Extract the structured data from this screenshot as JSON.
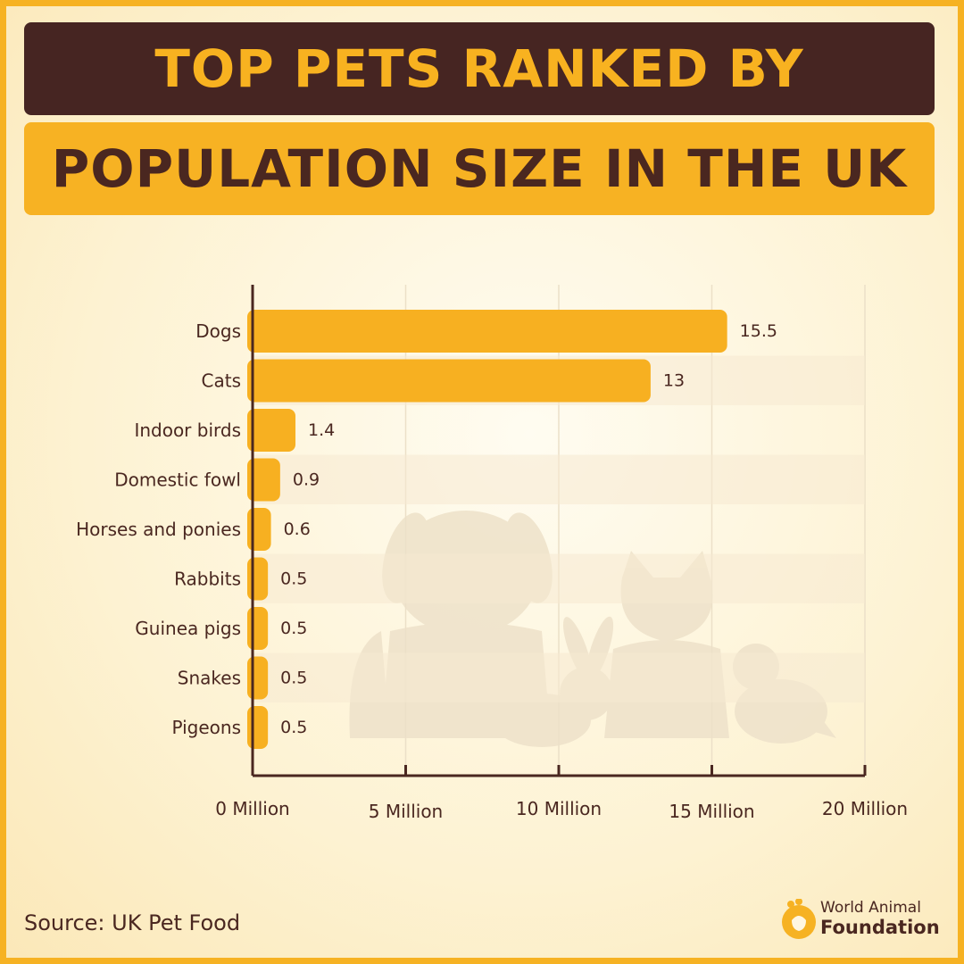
{
  "header": {
    "title_line1": "TOP PETS RANKED BY",
    "title_line2": "POPULATION SIZE IN THE UK"
  },
  "chart_data": {
    "type": "bar",
    "orientation": "horizontal",
    "categories": [
      "Dogs",
      "Cats",
      "Indoor birds",
      "Domestic fowl",
      "Horses and ponies",
      "Rabbits",
      "Guinea pigs",
      "Snakes",
      "Pigeons"
    ],
    "values": [
      15.5,
      13,
      1.4,
      0.9,
      0.6,
      0.5,
      0.5,
      0.5,
      0.5
    ],
    "value_labels": [
      "15.5",
      "13",
      "1.4",
      "0.9",
      "0.6",
      "0.5",
      "0.5",
      "0.5",
      "0.5"
    ],
    "xlim": [
      0,
      20
    ],
    "x_ticks": [
      0,
      5,
      10,
      15,
      20
    ],
    "x_tick_labels": [
      "0 Million",
      "5 Million",
      "10 Million",
      "15 Million",
      "20 Million"
    ],
    "grid": true,
    "colors": {
      "bar": "#f7b021",
      "axis": "#4a2720",
      "grid": "#ece0c8",
      "text": "#4a2720"
    }
  },
  "footer": {
    "source": "Source: UK Pet Food",
    "logo_line1": "World Animal",
    "logo_line2": "Foundation",
    "logo_icon": "paw-heart-icon"
  }
}
